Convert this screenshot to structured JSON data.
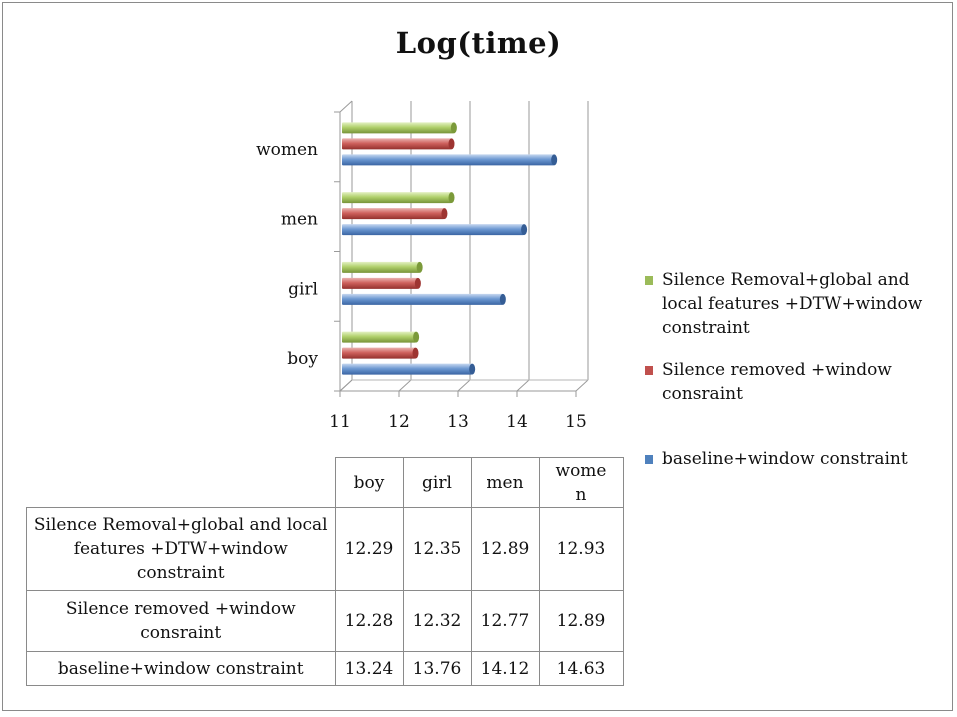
{
  "chart_data": {
    "type": "bar",
    "orientation": "horizontal",
    "title": "Log(time)",
    "categories": [
      "boy",
      "girl",
      "men",
      "women"
    ],
    "series": [
      {
        "name": "Silence Removal+global and local features +DTW+window constraint",
        "color": "#9bbb59",
        "values": [
          12.29,
          12.35,
          12.89,
          12.93
        ]
      },
      {
        "name": "Silence removed +window consraint",
        "color": "#c0504d",
        "values": [
          12.28,
          12.32,
          12.77,
          12.89
        ]
      },
      {
        "name": "baseline+window constraint",
        "color": "#4f81bd",
        "values": [
          13.24,
          13.76,
          14.12,
          14.63
        ]
      }
    ],
    "xlim": [
      11,
      15
    ],
    "x_ticks": [
      "11",
      "12",
      "13",
      "14",
      "15"
    ],
    "legend_position": "right"
  },
  "table": {
    "headers": [
      "boy",
      "girl",
      "men",
      "wome n"
    ],
    "rows": [
      {
        "label": "Silence Removal+global and local features +DTW+window constraint",
        "values": [
          "12.29",
          "12.35",
          "12.89",
          "12.93"
        ]
      },
      {
        "label": "Silence removed +window consraint",
        "values": [
          "12.28",
          "12.32",
          "12.77",
          "12.89"
        ]
      },
      {
        "label": "baseline+window constraint",
        "values": [
          "13.24",
          "13.76",
          "14.12",
          "14.63"
        ]
      }
    ]
  }
}
